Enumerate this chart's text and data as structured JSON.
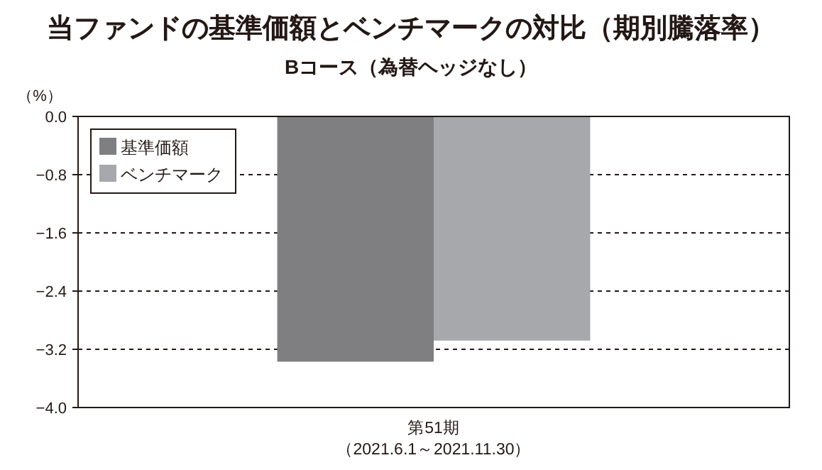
{
  "chart_data": {
    "type": "bar",
    "title": "当ファンドの基準価額とベンチマークの対比（期別騰落率）",
    "subtitle": "Bコース（為替ヘッジなし）",
    "ylabel": "（%）",
    "categories": [
      "第51期"
    ],
    "annotations": [
      "（2021.6.1～2021.11.30）"
    ],
    "series": [
      {
        "name": "基準価額",
        "color": "#7f7f82",
        "values": [
          -3.37
        ]
      },
      {
        "name": "ベンチマーク",
        "color": "#a7a8ab",
        "values": [
          -3.08
        ]
      }
    ],
    "ylim": [
      -4.0,
      0.0
    ],
    "yticks": [
      {
        "value": 0.0,
        "label": "0.0"
      },
      {
        "value": -0.8,
        "label": "−0.8"
      },
      {
        "value": -1.6,
        "label": "−1.6"
      },
      {
        "value": -2.4,
        "label": "−2.4"
      },
      {
        "value": -3.2,
        "label": "−3.2"
      },
      {
        "value": -4.0,
        "label": "−4.0"
      }
    ],
    "grid": "y",
    "legend": "top left"
  }
}
